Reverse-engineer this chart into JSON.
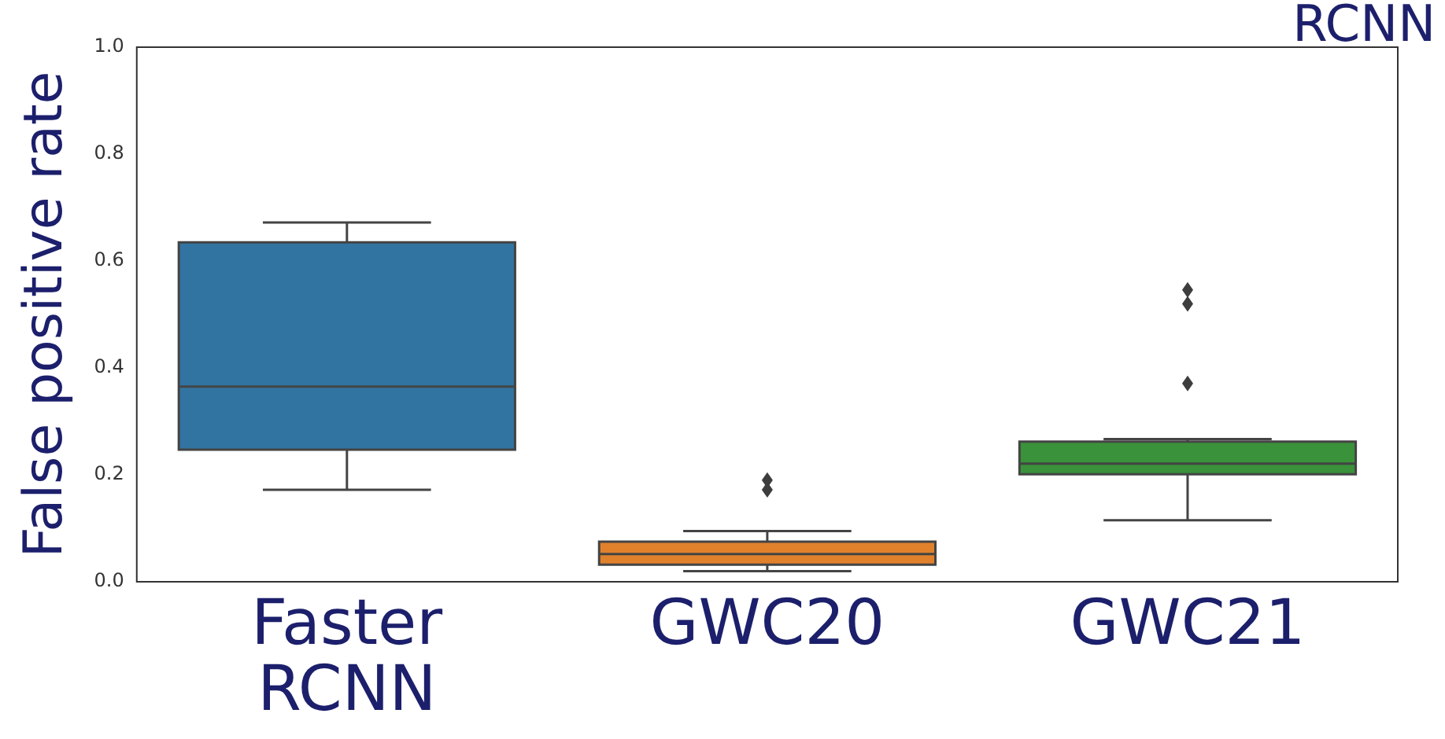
{
  "chart_data": {
    "type": "box",
    "ylabel": "False positive rate",
    "categories": [
      "Faster RCNN",
      "GWC20",
      "GWC21"
    ],
    "colors": [
      "#3274a1",
      "#e1812c",
      "#3a923a"
    ],
    "boxes": [
      {
        "low": 0.172,
        "q1": 0.247,
        "median": 0.365,
        "q3": 0.635,
        "high": 0.672
      },
      {
        "low": 0.02,
        "q1": 0.032,
        "median": 0.052,
        "q3": 0.075,
        "high": 0.095,
        "outliers": [
          0.19,
          0.172
        ]
      },
      {
        "low": 0.115,
        "q1": 0.201,
        "median": 0.221,
        "q3": 0.262,
        "high": 0.267,
        "outliers": [
          0.546,
          0.52,
          0.371
        ]
      }
    ],
    "ylim": [
      0,
      1
    ],
    "yticks": [
      {
        "value": 0,
        "label": "0.0"
      },
      {
        "value": 0.2,
        "label": "0.2"
      },
      {
        "value": 0.4,
        "label": "0.4"
      },
      {
        "value": 0.6,
        "label": "0.6"
      },
      {
        "value": 0.8,
        "label": "0.8"
      },
      {
        "value": 1,
        "label": "1.0"
      }
    ],
    "annotations": [
      "RCNN"
    ],
    "grid": false,
    "legend": false
  }
}
